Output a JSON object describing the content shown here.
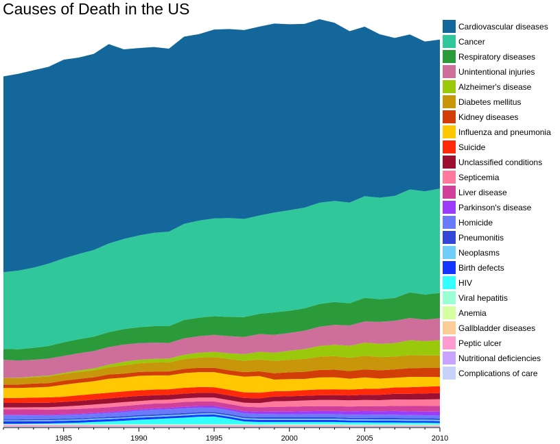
{
  "chart_data": {
    "type": "area",
    "stacked": true,
    "title": "Causes of Death in the US",
    "xlabel": "",
    "ylabel": "",
    "x": [
      1981,
      1982,
      1983,
      1984,
      1985,
      1986,
      1987,
      1988,
      1989,
      1990,
      1991,
      1992,
      1993,
      1994,
      1995,
      1996,
      1997,
      1998,
      1999,
      2000,
      2001,
      2002,
      2003,
      2004,
      2005,
      2006,
      2007,
      2008,
      2009,
      2010
    ],
    "xlim": [
      1981,
      2010
    ],
    "xticks": [
      "1985",
      "1990",
      "1995",
      "2000",
      "2005",
      "2010"
    ],
    "legend": "right",
    "grid": false,
    "series": [
      {
        "name": "Complications of care",
        "color": "#c6d2fa",
        "values": [
          0.2,
          0.2,
          0.2,
          0.2,
          0.2,
          0.2,
          0.2,
          0.2,
          0.2,
          0.2,
          0.2,
          0.2,
          0.2,
          0.2,
          0.2,
          0.2,
          0.2,
          0.2,
          0.2,
          0.2,
          0.2,
          0.2,
          0.2,
          0.2,
          0.2,
          0.2,
          0.2,
          0.2,
          0.2,
          0.2
        ]
      },
      {
        "name": "Nutritional deficiencies",
        "color": "#c9a4ff",
        "values": [
          0.2,
          0.2,
          0.2,
          0.2,
          0.2,
          0.2,
          0.2,
          0.2,
          0.2,
          0.2,
          0.2,
          0.2,
          0.2,
          0.2,
          0.2,
          0.2,
          0.2,
          0.2,
          0.2,
          0.2,
          0.2,
          0.2,
          0.2,
          0.2,
          0.2,
          0.2,
          0.2,
          0.2,
          0.2,
          0.2
        ]
      },
      {
        "name": "Peptic ulcer",
        "color": "#ff9ccf",
        "values": [
          0.6,
          0.6,
          0.6,
          0.6,
          0.6,
          0.6,
          0.5,
          0.5,
          0.5,
          0.5,
          0.5,
          0.5,
          0.5,
          0.5,
          0.5,
          0.5,
          0.5,
          0.4,
          0.4,
          0.4,
          0.4,
          0.4,
          0.4,
          0.3,
          0.3,
          0.3,
          0.3,
          0.3,
          0.3,
          0.3
        ]
      },
      {
        "name": "Gallbladder diseases",
        "color": "#fccc96",
        "values": [
          0.2,
          0.2,
          0.2,
          0.2,
          0.2,
          0.2,
          0.2,
          0.2,
          0.2,
          0.2,
          0.2,
          0.2,
          0.2,
          0.2,
          0.2,
          0.2,
          0.2,
          0.2,
          0.2,
          0.2,
          0.2,
          0.2,
          0.2,
          0.2,
          0.2,
          0.2,
          0.2,
          0.2,
          0.2,
          0.2
        ]
      },
      {
        "name": "Anemia",
        "color": "#d5ffa0",
        "values": [
          0.2,
          0.2,
          0.2,
          0.2,
          0.2,
          0.2,
          0.2,
          0.2,
          0.2,
          0.2,
          0.2,
          0.2,
          0.2,
          0.2,
          0.2,
          0.2,
          0.2,
          0.2,
          0.2,
          0.2,
          0.2,
          0.2,
          0.2,
          0.2,
          0.2,
          0.2,
          0.2,
          0.2,
          0.2,
          0.2
        ]
      },
      {
        "name": "Viral hepatitis",
        "color": "#9affd3",
        "values": [
          0.1,
          0.1,
          0.1,
          0.1,
          0.1,
          0.1,
          0.1,
          0.1,
          0.1,
          0.1,
          0.1,
          0.1,
          0.1,
          0.1,
          0.1,
          0.1,
          0.1,
          0.1,
          0.2,
          0.2,
          0.2,
          0.2,
          0.2,
          0.2,
          0.2,
          0.2,
          0.2,
          0.2,
          0.2,
          0.2
        ]
      },
      {
        "name": "HIV",
        "color": "#33ffff",
        "values": [
          0.2,
          0.2,
          0.3,
          0.4,
          0.6,
          0.8,
          1.3,
          1.6,
          2.0,
          2.5,
          2.9,
          3.3,
          3.7,
          4.2,
          4.3,
          3.1,
          1.6,
          1.4,
          1.3,
          1.3,
          1.3,
          1.3,
          1.3,
          1.2,
          1.2,
          1.1,
          1.1,
          1.0,
          1.0,
          0.8
        ]
      },
      {
        "name": "Birth defects",
        "color": "#1436ff",
        "values": [
          1.3,
          1.3,
          1.3,
          1.2,
          1.2,
          1.2,
          1.2,
          1.2,
          1.2,
          1.2,
          1.1,
          1.1,
          1.1,
          1.1,
          1.1,
          1.1,
          1.1,
          1.1,
          1.1,
          1.1,
          1.1,
          1.1,
          1.1,
          1.0,
          1.0,
          1.0,
          1.0,
          1.0,
          1.0,
          1.0
        ]
      },
      {
        "name": "Neoplasms",
        "color": "#6fcdfa",
        "values": [
          0.6,
          0.6,
          0.6,
          0.6,
          0.6,
          0.6,
          0.6,
          0.6,
          0.6,
          0.7,
          0.7,
          0.7,
          0.7,
          0.7,
          0.7,
          0.7,
          0.7,
          0.7,
          0.7,
          0.7,
          0.7,
          0.7,
          0.7,
          0.7,
          0.7,
          0.7,
          0.7,
          0.7,
          0.7,
          0.7
        ]
      },
      {
        "name": "Pneumonitis",
        "color": "#3346d6",
        "values": [
          0.5,
          0.5,
          0.6,
          0.6,
          0.6,
          0.6,
          0.6,
          0.7,
          0.7,
          0.7,
          0.7,
          0.7,
          0.7,
          0.7,
          0.7,
          0.7,
          0.7,
          0.8,
          0.8,
          0.8,
          0.8,
          0.8,
          0.8,
          0.8,
          0.8,
          0.8,
          0.8,
          0.8,
          0.8,
          0.8
        ]
      },
      {
        "name": "Homicide",
        "color": "#6a7bfa",
        "values": [
          2.2,
          2.2,
          2.0,
          1.9,
          1.9,
          2.1,
          2.0,
          2.1,
          2.2,
          2.4,
          2.6,
          2.5,
          2.6,
          2.5,
          2.3,
          2.1,
          2.0,
          1.8,
          1.7,
          1.6,
          1.7,
          1.7,
          1.7,
          1.7,
          1.8,
          1.8,
          1.8,
          1.7,
          1.6,
          1.6
        ]
      },
      {
        "name": "Parkinson's disease",
        "color": "#9a3cfa",
        "values": [
          0.4,
          0.4,
          0.5,
          0.5,
          0.5,
          0.5,
          0.6,
          0.6,
          0.7,
          0.7,
          0.8,
          0.8,
          0.9,
          0.9,
          1.0,
          1.0,
          1.1,
          1.2,
          1.4,
          1.5,
          1.6,
          1.7,
          1.7,
          1.8,
          1.9,
          1.9,
          2.0,
          2.0,
          2.0,
          2.2
        ]
      },
      {
        "name": "Liver disease",
        "color": "#d0409a",
        "values": [
          3.0,
          2.9,
          2.8,
          2.8,
          2.7,
          2.6,
          2.6,
          2.6,
          2.7,
          2.6,
          2.6,
          2.5,
          2.6,
          2.5,
          2.5,
          2.5,
          2.5,
          2.5,
          2.6,
          2.7,
          2.7,
          2.7,
          2.7,
          2.7,
          2.7,
          2.7,
          2.9,
          3.0,
          3.1,
          3.2
        ]
      },
      {
        "name": "Septicemia",
        "color": "#ff7a9c",
        "values": [
          1.0,
          1.1,
          1.2,
          1.3,
          1.6,
          1.8,
          2.0,
          2.1,
          2.1,
          2.0,
          2.0,
          2.0,
          2.0,
          2.1,
          2.1,
          2.1,
          2.2,
          2.3,
          3.1,
          3.1,
          3.2,
          3.4,
          3.4,
          3.4,
          3.4,
          3.4,
          3.5,
          3.5,
          3.6,
          3.6
        ]
      },
      {
        "name": "Unclassified conditions",
        "color": "#9c1132",
        "values": [
          2.5,
          2.5,
          2.5,
          2.5,
          2.5,
          2.6,
          2.7,
          2.8,
          2.8,
          2.8,
          2.6,
          2.6,
          2.6,
          2.6,
          2.6,
          2.6,
          2.6,
          2.6,
          2.6,
          2.6,
          2.6,
          2.6,
          2.7,
          2.7,
          2.8,
          2.9,
          3.1,
          3.2,
          3.3,
          3.4
        ]
      },
      {
        "name": "Suicide",
        "color": "#ff2a0a",
        "values": [
          2.7,
          2.7,
          2.8,
          2.9,
          2.9,
          3.1,
          3.1,
          3.1,
          3.1,
          3.1,
          3.1,
          3.1,
          3.2,
          3.2,
          3.1,
          3.1,
          3.1,
          3.1,
          2.9,
          2.9,
          3.1,
          3.2,
          3.2,
          3.2,
          3.3,
          3.4,
          3.5,
          3.6,
          3.7,
          3.8
        ]
      },
      {
        "name": "Influenza and pneumonia",
        "color": "#ffc800",
        "values": [
          5.5,
          5.5,
          5.6,
          5.8,
          6.6,
          6.8,
          7.0,
          7.7,
          7.6,
          8.0,
          7.8,
          7.6,
          8.1,
          8.2,
          8.3,
          8.3,
          8.6,
          9.2,
          6.4,
          6.6,
          6.2,
          6.6,
          6.6,
          6.0,
          6.3,
          5.6,
          5.3,
          5.7,
          5.4,
          5.0
        ]
      },
      {
        "name": "Kidney diseases",
        "color": "#d23e08",
        "values": [
          1.9,
          1.9,
          2.1,
          2.1,
          2.2,
          2.2,
          2.2,
          2.3,
          2.2,
          2.1,
          2.2,
          2.2,
          2.3,
          2.4,
          2.4,
          2.4,
          2.5,
          2.6,
          3.5,
          3.7,
          3.9,
          4.1,
          4.2,
          4.2,
          4.4,
          4.5,
          4.6,
          4.8,
          4.9,
          5.0
        ]
      },
      {
        "name": "Diabetes mellitus",
        "color": "#c8960a",
        "values": [
          3.5,
          3.5,
          3.5,
          3.6,
          3.7,
          3.8,
          3.8,
          4.0,
          4.6,
          4.8,
          4.9,
          5.0,
          5.4,
          5.6,
          5.9,
          6.2,
          6.3,
          6.5,
          6.8,
          6.9,
          7.1,
          7.3,
          7.4,
          7.3,
          7.5,
          7.3,
          7.1,
          7.1,
          6.9,
          6.9
        ]
      },
      {
        "name": "Alzheimer's disease",
        "color": "#9ac80a",
        "values": [
          0.1,
          0.2,
          0.4,
          0.5,
          0.6,
          0.8,
          1.1,
          1.4,
          1.9,
          1.9,
          2.0,
          2.1,
          2.4,
          2.7,
          2.9,
          3.2,
          3.6,
          4.2,
          4.5,
          5.0,
          5.4,
          5.9,
          6.3,
          6.6,
          7.2,
          7.3,
          7.4,
          8.3,
          7.9,
          8.4
        ]
      },
      {
        "name": "Unintentional injuries",
        "color": "#cd6f9a",
        "values": [
          10.0,
          9.5,
          9.2,
          9.4,
          9.3,
          9.5,
          9.5,
          9.7,
          9.5,
          9.2,
          8.9,
          8.6,
          9.0,
          9.1,
          9.3,
          9.4,
          9.5,
          9.8,
          9.8,
          9.8,
          10.1,
          10.6,
          10.9,
          11.2,
          11.7,
          12.1,
          12.3,
          12.2,
          11.8,
          12.1
        ]
      },
      {
        "name": "Respiratory diseases",
        "color": "#2a9a3a",
        "values": [
          6.0,
          6.2,
          6.6,
          6.9,
          7.5,
          7.7,
          7.9,
          8.2,
          8.5,
          8.7,
          9.1,
          9.2,
          10.1,
          10.2,
          10.3,
          10.6,
          10.9,
          11.1,
          12.4,
          12.2,
          12.3,
          12.5,
          12.6,
          12.2,
          13.0,
          12.4,
          12.5,
          14.1,
          13.8,
          13.9
        ]
      },
      {
        "name": "Cancer",
        "color": "#30c89a",
        "values": [
          42.2,
          43.3,
          44.1,
          45.3,
          46.2,
          46.9,
          47.7,
          48.8,
          49.6,
          50.5,
          51.4,
          52.0,
          52.9,
          53.4,
          53.8,
          54.4,
          54.0,
          54.1,
          54.9,
          55.3,
          55.4,
          55.7,
          55.6,
          55.4,
          55.9,
          55.9,
          56.2,
          56.6,
          56.8,
          57.4
        ]
      },
      {
        "name": "Cardiovascular diseases",
        "color": "#13679a",
        "values": [
          107.7,
          108.3,
          108.6,
          108.3,
          109.3,
          108.1,
          107.9,
          109.7,
          104.3,
          103.1,
          102.2,
          100.7,
          103.0,
          102.6,
          103.9,
          104.0,
          103.9,
          103.9,
          104.0,
          102.3,
          101.1,
          101.0,
          98.0,
          94.3,
          93.3,
          89.9,
          86.9,
          85.3,
          82.4,
          82.0
        ]
      }
    ]
  }
}
